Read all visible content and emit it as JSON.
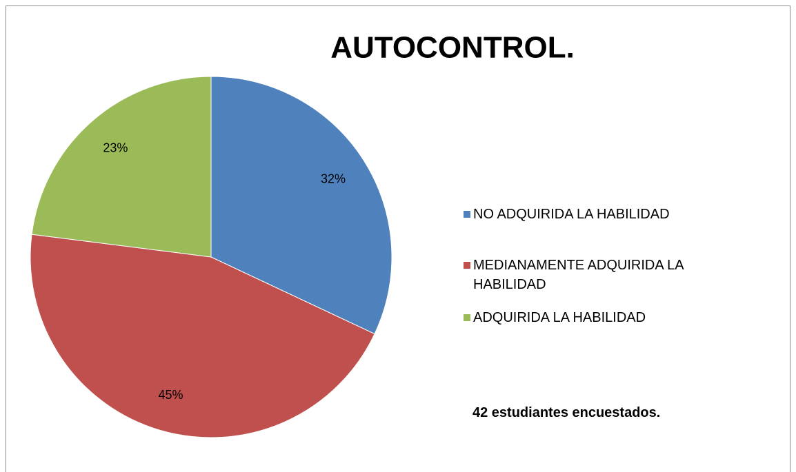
{
  "chart_data": {
    "type": "pie",
    "title": "AUTOCONTROL.",
    "categories": [
      "NO ADQUIRIDA LA HABILIDAD",
      "MEDIANAMENTE ADQUIRIDA LA HABILIDAD",
      "ADQUIRIDA LA HABILIDAD"
    ],
    "values": [
      32,
      45,
      23
    ],
    "value_labels": [
      "32%",
      "45%",
      "23%"
    ],
    "colors": [
      "#4f81bd",
      "#c0504d",
      "#9bbb59"
    ],
    "annotation": "42 estudiantes encuestados."
  }
}
